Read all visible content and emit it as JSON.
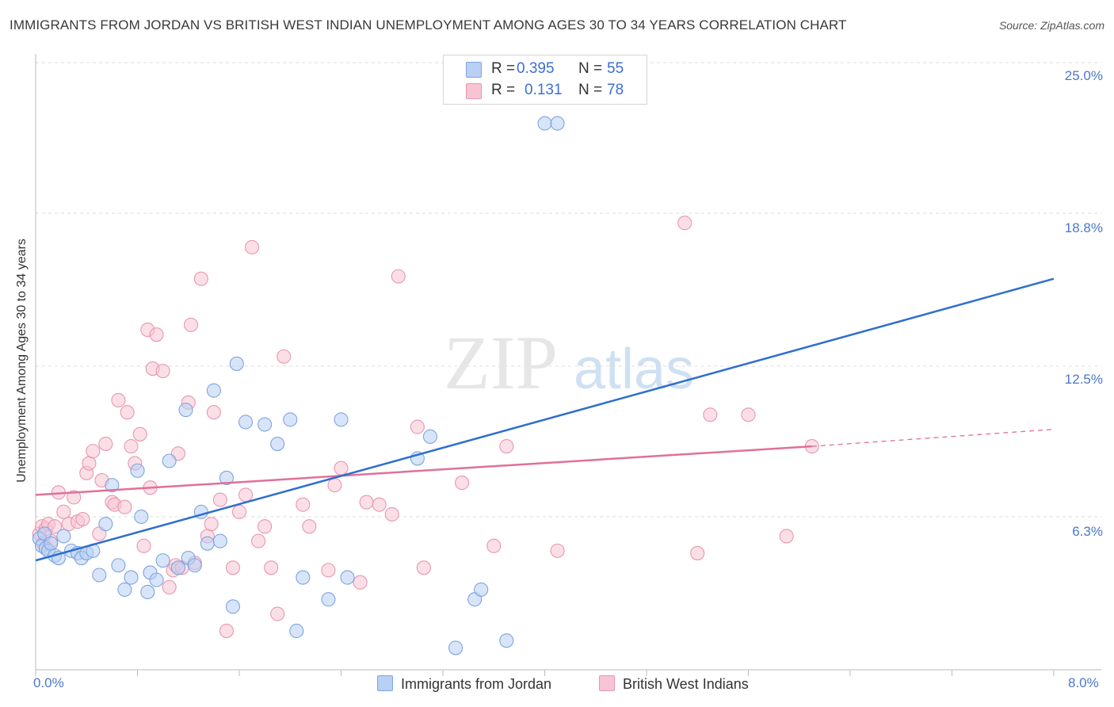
{
  "title": "IMMIGRANTS FROM JORDAN VS BRITISH WEST INDIAN UNEMPLOYMENT AMONG AGES 30 TO 34 YEARS CORRELATION CHART",
  "source": "Source: ZipAtlas.com",
  "watermark": {
    "zip": "ZIP",
    "atlas": "atlas"
  },
  "legend_top": [
    {
      "r_label": "R =",
      "r_value": "0.395",
      "n_label": "N =",
      "n_value": "55"
    },
    {
      "r_label": "R =",
      "r_value": "0.131",
      "n_label": "N =",
      "n_value": "78"
    }
  ],
  "legend_bottom": [
    "Immigrants from Jordan",
    "British West Indians"
  ],
  "colors": {
    "jordan_fill": "#b8d0f4",
    "jordan_stroke": "#7ea4de",
    "jordan_line": "#2f6fcf",
    "bwi_fill": "#f7c4d4",
    "bwi_stroke": "#e896b0",
    "bwi_line": "#e0709a",
    "tick_text": "#4a78cc",
    "grid": "#dddddd"
  },
  "chart_data": {
    "type": "scatter",
    "title": "IMMIGRANTS FROM JORDAN VS BRITISH WEST INDIAN UNEMPLOYMENT AMONG AGES 30 TO 34 YEARS CORRELATION CHART",
    "xlabel": "",
    "ylabel": "Unemployment Among Ages 30 to 34 years",
    "xlim": [
      0,
      8
    ],
    "ylim": [
      0,
      25
    ],
    "x_tick_labels": [
      "0.0%",
      "8.0%"
    ],
    "y_ticks": [
      6.3,
      12.5,
      18.8,
      25.0
    ],
    "y_tick_labels": [
      "6.3%",
      "12.5%",
      "18.8%",
      "25.0%"
    ],
    "grid": true,
    "legend_position": "top-center",
    "series": [
      {
        "name": "Immigrants from Jordan",
        "r": 0.395,
        "n": 55,
        "trend": {
          "x": [
            0,
            8
          ],
          "y": [
            4.5,
            16.1
          ]
        },
        "points": [
          [
            0.03,
            5.4
          ],
          [
            0.05,
            5.1
          ],
          [
            0.07,
            5.6
          ],
          [
            0.08,
            5.0
          ],
          [
            0.1,
            4.9
          ],
          [
            0.12,
            5.2
          ],
          [
            0.15,
            4.7
          ],
          [
            0.18,
            4.6
          ],
          [
            0.22,
            5.5
          ],
          [
            0.28,
            4.9
          ],
          [
            0.33,
            4.8
          ],
          [
            0.36,
            4.6
          ],
          [
            0.4,
            4.8
          ],
          [
            0.45,
            4.9
          ],
          [
            0.5,
            3.9
          ],
          [
            0.55,
            6.0
          ],
          [
            0.6,
            7.6
          ],
          [
            0.65,
            4.3
          ],
          [
            0.7,
            3.3
          ],
          [
            0.75,
            3.8
          ],
          [
            0.8,
            8.2
          ],
          [
            0.83,
            6.3
          ],
          [
            0.88,
            3.2
          ],
          [
            0.9,
            4.0
          ],
          [
            0.95,
            3.7
          ],
          [
            1.0,
            4.5
          ],
          [
            1.05,
            8.6
          ],
          [
            1.12,
            4.2
          ],
          [
            1.18,
            10.7
          ],
          [
            1.2,
            4.6
          ],
          [
            1.25,
            4.3
          ],
          [
            1.3,
            6.5
          ],
          [
            1.35,
            5.2
          ],
          [
            1.4,
            11.5
          ],
          [
            1.45,
            5.3
          ],
          [
            1.5,
            7.9
          ],
          [
            1.55,
            2.6
          ],
          [
            1.58,
            12.6
          ],
          [
            1.65,
            10.2
          ],
          [
            1.8,
            10.1
          ],
          [
            1.9,
            9.3
          ],
          [
            2.0,
            10.3
          ],
          [
            2.05,
            1.6
          ],
          [
            2.1,
            3.8
          ],
          [
            2.3,
            2.9
          ],
          [
            2.4,
            10.3
          ],
          [
            2.45,
            3.8
          ],
          [
            3.0,
            8.7
          ],
          [
            3.1,
            9.6
          ],
          [
            3.3,
            0.9
          ],
          [
            3.45,
            2.9
          ],
          [
            3.5,
            3.3
          ],
          [
            3.7,
            1.2
          ],
          [
            4.0,
            22.5
          ],
          [
            4.1,
            22.5
          ]
        ]
      },
      {
        "name": "British West Indians",
        "r": 0.131,
        "n": 78,
        "trend": {
          "x": [
            0,
            6.1
          ],
          "y": [
            7.2,
            9.2
          ]
        },
        "trend_dashed": {
          "x": [
            6.1,
            8
          ],
          "y": [
            9.2,
            9.9
          ]
        },
        "points": [
          [
            0.03,
            5.6
          ],
          [
            0.05,
            5.9
          ],
          [
            0.06,
            5.2
          ],
          [
            0.08,
            5.8
          ],
          [
            0.1,
            6.0
          ],
          [
            0.12,
            5.3
          ],
          [
            0.15,
            5.9
          ],
          [
            0.18,
            7.3
          ],
          [
            0.22,
            6.5
          ],
          [
            0.26,
            6.0
          ],
          [
            0.3,
            7.1
          ],
          [
            0.33,
            6.1
          ],
          [
            0.37,
            6.2
          ],
          [
            0.4,
            8.1
          ],
          [
            0.42,
            8.5
          ],
          [
            0.45,
            9.0
          ],
          [
            0.5,
            5.6
          ],
          [
            0.52,
            7.8
          ],
          [
            0.55,
            9.3
          ],
          [
            0.6,
            6.9
          ],
          [
            0.62,
            6.8
          ],
          [
            0.65,
            11.1
          ],
          [
            0.7,
            6.7
          ],
          [
            0.72,
            10.6
          ],
          [
            0.75,
            9.2
          ],
          [
            0.78,
            8.5
          ],
          [
            0.82,
            9.7
          ],
          [
            0.85,
            5.1
          ],
          [
            0.88,
            14.0
          ],
          [
            0.9,
            7.5
          ],
          [
            0.92,
            12.4
          ],
          [
            0.95,
            13.8
          ],
          [
            1.0,
            12.3
          ],
          [
            1.05,
            3.4
          ],
          [
            1.08,
            4.1
          ],
          [
            1.1,
            4.3
          ],
          [
            1.12,
            8.9
          ],
          [
            1.15,
            4.2
          ],
          [
            1.2,
            11.0
          ],
          [
            1.22,
            14.2
          ],
          [
            1.25,
            4.4
          ],
          [
            1.3,
            16.1
          ],
          [
            1.35,
            5.5
          ],
          [
            1.38,
            6.0
          ],
          [
            1.4,
            10.6
          ],
          [
            1.45,
            7.0
          ],
          [
            1.5,
            1.6
          ],
          [
            1.55,
            4.2
          ],
          [
            1.6,
            6.5
          ],
          [
            1.65,
            7.2
          ],
          [
            1.7,
            17.4
          ],
          [
            1.75,
            5.3
          ],
          [
            1.8,
            5.9
          ],
          [
            1.85,
            4.2
          ],
          [
            1.9,
            2.3
          ],
          [
            1.95,
            12.9
          ],
          [
            2.1,
            6.8
          ],
          [
            2.15,
            5.9
          ],
          [
            2.3,
            4.1
          ],
          [
            2.35,
            7.6
          ],
          [
            2.4,
            8.3
          ],
          [
            2.55,
            3.6
          ],
          [
            2.6,
            6.9
          ],
          [
            2.7,
            6.8
          ],
          [
            2.8,
            6.4
          ],
          [
            2.85,
            16.2
          ],
          [
            3.0,
            10.0
          ],
          [
            3.05,
            4.2
          ],
          [
            3.35,
            7.7
          ],
          [
            3.6,
            5.1
          ],
          [
            3.7,
            9.2
          ],
          [
            4.1,
            4.9
          ],
          [
            5.1,
            18.4
          ],
          [
            5.2,
            4.8
          ],
          [
            5.3,
            10.5
          ],
          [
            5.6,
            10.5
          ],
          [
            5.9,
            5.5
          ],
          [
            6.1,
            9.2
          ]
        ]
      }
    ]
  }
}
